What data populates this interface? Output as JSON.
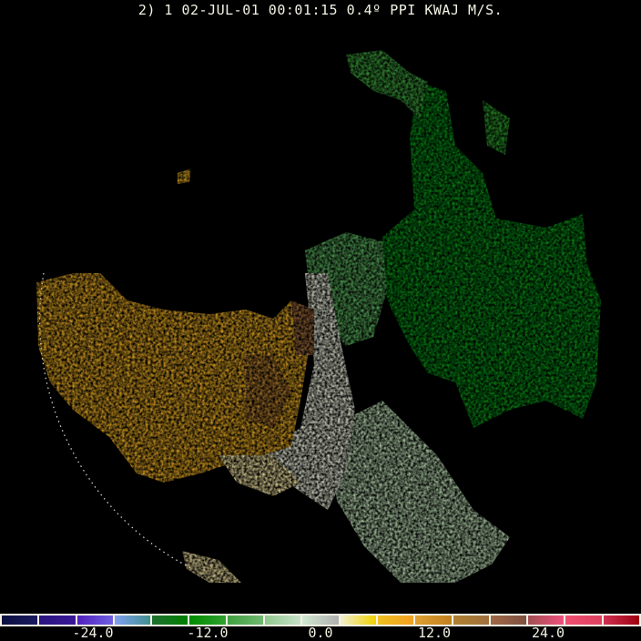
{
  "title": "2) 1 02-JUL-01 00:01:15 0.4º PPI KWAJ M/S.",
  "colorbar": {
    "unit": "M/S",
    "ticks": [
      "-24.0",
      "-12.0",
      "0.0",
      "12.0",
      "24.0"
    ],
    "segments": [
      [
        "#0a1040",
        "#1a1a60"
      ],
      [
        "#2a1580",
        "#3a1898"
      ],
      [
        "#5020c0",
        "#7060e0"
      ],
      [
        "#80a0f0",
        "#409090"
      ],
      [
        "#207030",
        "#008000"
      ],
      [
        "#008c00",
        "#30a030"
      ],
      [
        "#40a040",
        "#70b870"
      ],
      [
        "#90c890",
        "#c8e0c8"
      ],
      [
        "#d0e8d0",
        "#b0b0b0"
      ],
      [
        "#f0f0d0",
        "#f0d000"
      ],
      [
        "#f0c020",
        "#f0a020"
      ],
      [
        "#e0a030",
        "#c08020"
      ],
      [
        "#b08030",
        "#a07040"
      ],
      [
        "#a06848",
        "#805040"
      ],
      [
        "#a05050",
        "#f05080"
      ],
      [
        "#f05070",
        "#e04060"
      ],
      [
        "#d03050",
        "#a00010"
      ]
    ]
  },
  "echo_colors": {
    "approaching": "#008c00",
    "receding": "#e8a820",
    "near_zero": "#d8e8d0"
  }
}
